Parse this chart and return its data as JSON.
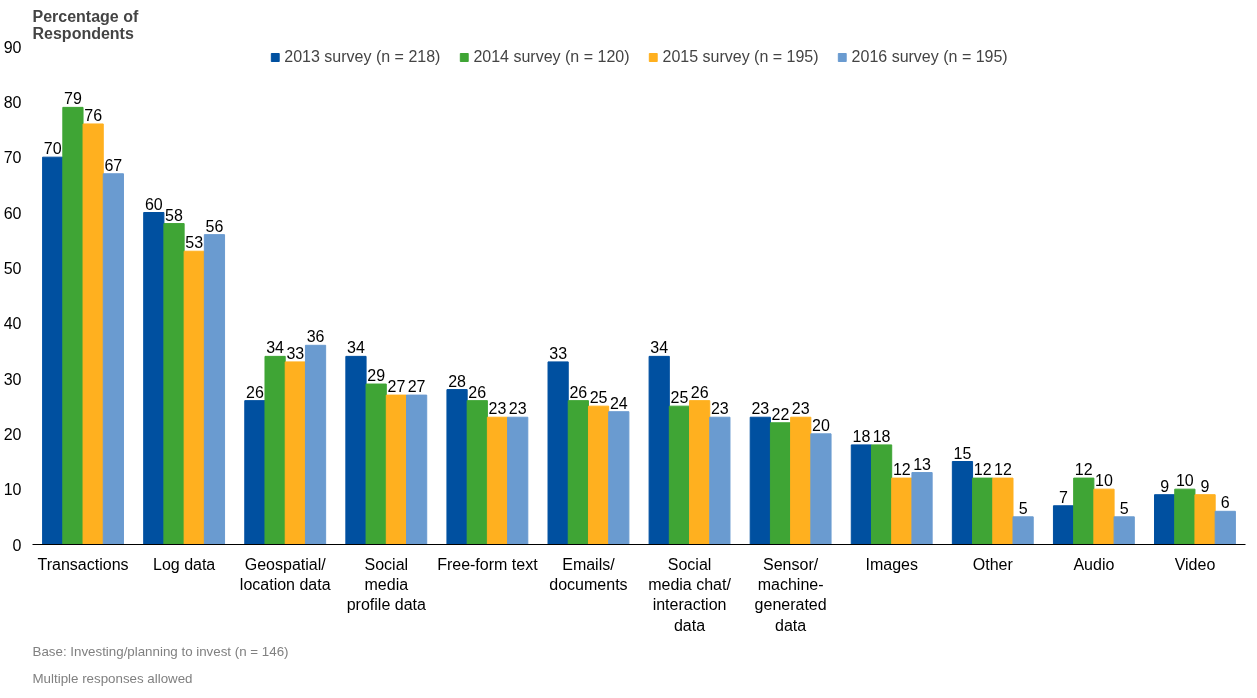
{
  "chart_data": {
    "type": "bar",
    "ylabel": "Percentage of\nRespondents",
    "categories": [
      "Transactions",
      "Log data",
      "Geospatial/\nlocation data",
      "Social\nmedia\nprofile data",
      "Free-form text",
      "Emails/\ndocuments",
      "Social\nmedia chat/\ninteraction\ndata",
      "Sensor/\nmachine-\ngenerated\ndata",
      "Images",
      "Other",
      "Audio",
      "Video"
    ],
    "series": [
      {
        "name": "2013 survey (n = 218)",
        "color": "#0050a0",
        "values": [
          70,
          60,
          26,
          34,
          28,
          33,
          34,
          23,
          18,
          15,
          7,
          9
        ]
      },
      {
        "name": "2014 survey (n = 120)",
        "color": "#3fa535",
        "values": [
          79,
          58,
          34,
          29,
          26,
          26,
          25,
          22,
          18,
          12,
          12,
          10
        ]
      },
      {
        "name": "2015 survey (n = 195)",
        "color": "#ffb01f",
        "values": [
          76,
          53,
          33,
          27,
          23,
          25,
          26,
          23,
          12,
          12,
          10,
          9
        ]
      },
      {
        "name": "2016 survey (n = 195)",
        "color": "#6a9bd0",
        "values": [
          67,
          56,
          36,
          27,
          23,
          24,
          23,
          20,
          13,
          5,
          5,
          6
        ]
      }
    ],
    "ylim": [
      0,
      90
    ],
    "yticks": [
      0,
      10,
      20,
      30,
      40,
      50,
      60,
      70,
      80,
      90
    ],
    "grid": false,
    "legend": "top",
    "data_labels": true,
    "annotations": [
      "Base: Investing/planning to invest (n = 146)",
      "Multiple responses allowed"
    ]
  }
}
